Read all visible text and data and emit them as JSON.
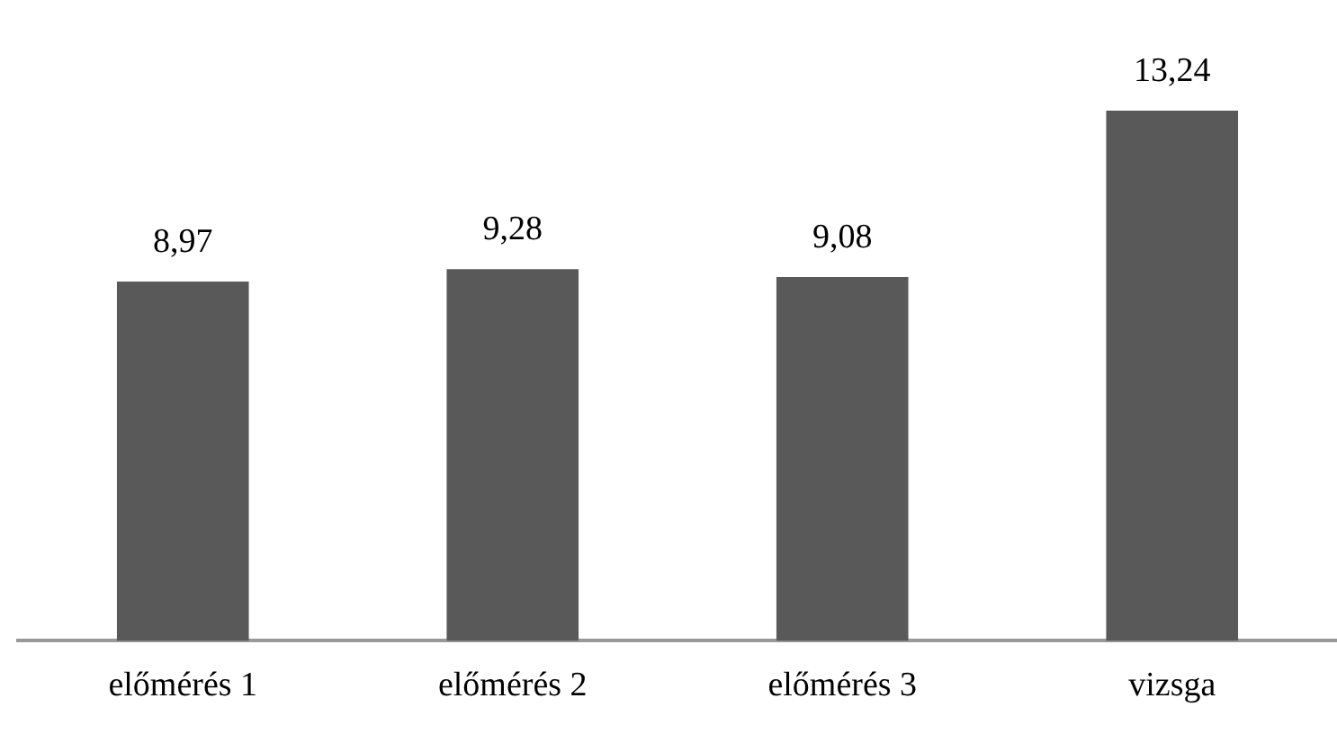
{
  "chart_data": {
    "type": "bar",
    "categories": [
      "előmérés 1",
      "előmérés 2",
      "előmérés 3",
      "vizsga"
    ],
    "values": [
      8.97,
      9.28,
      9.08,
      13.24
    ],
    "value_labels": [
      "8,97",
      "9,28",
      "9,08",
      "13,24"
    ],
    "color": "#595959",
    "grid": false,
    "legend": false
  }
}
